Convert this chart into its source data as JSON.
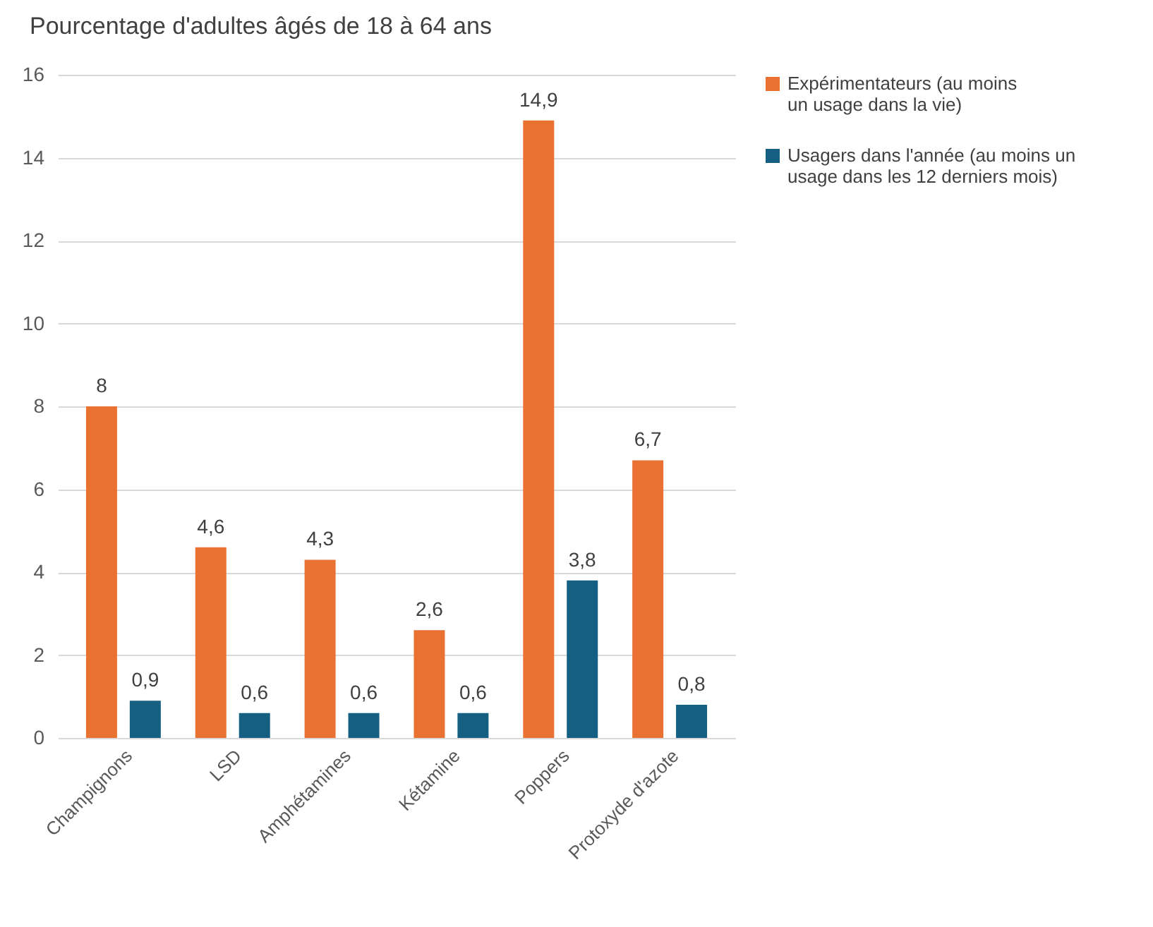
{
  "chart_data": {
    "type": "bar",
    "title": "Pourcentage d'adultes âgés de 18 à 64 ans",
    "categories": [
      "Champignons",
      "LSD",
      "Amphétamines",
      "Kétamine",
      "Poppers",
      "Protoxyde d'azote"
    ],
    "series": [
      {
        "name": "Expérimentateurs (au moins un usage dans la vie)",
        "color": "#e97132",
        "values": [
          8,
          4.6,
          4.3,
          2.6,
          14.9,
          6.7
        ],
        "value_labels": [
          "8",
          "4,6",
          "4,3",
          "2,6",
          "14,9",
          "6,7"
        ]
      },
      {
        "name": "Usagers dans l'année (au moins un usage dans les 12 derniers mois)",
        "color": "#156082",
        "values": [
          0.9,
          0.6,
          0.6,
          0.6,
          3.8,
          0.8
        ],
        "value_labels": [
          "0,9",
          "0,6",
          "0,6",
          "0,6",
          "3,8",
          "0,8"
        ]
      }
    ],
    "ylim": [
      0,
      16
    ],
    "yticks": [
      0,
      2,
      4,
      6,
      8,
      10,
      12,
      14,
      16
    ],
    "grid": "y",
    "legend": "right"
  }
}
